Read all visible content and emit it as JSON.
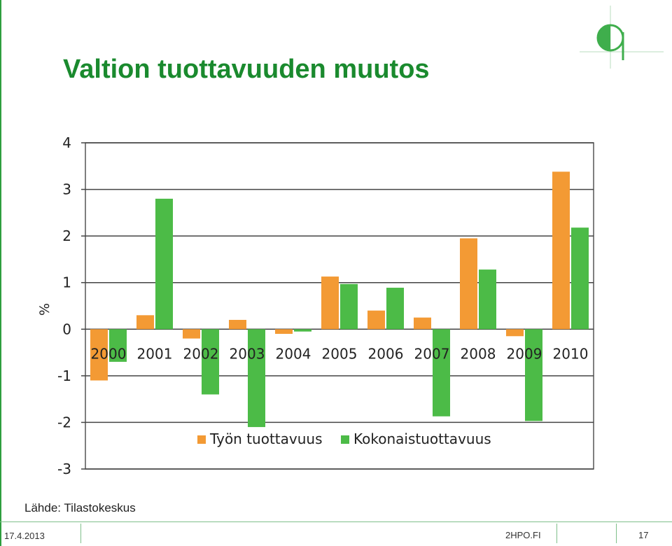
{
  "slide": {
    "title": "Valtion tuottavuuden muutos",
    "source": "Lähde: Tilastokeskus",
    "date": "17.4.2013",
    "site": "2HPO.FI",
    "page_number": "17"
  },
  "colors": {
    "title": "#1a8a2e",
    "series_1": "#f39a34",
    "series_2": "#4cbb47"
  },
  "chart_data": {
    "type": "bar",
    "title": "",
    "xlabel": "",
    "ylabel": "%",
    "ylim": [
      -3,
      4
    ],
    "yticks": [
      4,
      3,
      2,
      1,
      0,
      -1,
      -2,
      -3
    ],
    "grid": true,
    "legend_position": "bottom",
    "categories": [
      "2000",
      "2001",
      "2002",
      "2003",
      "2004",
      "2005",
      "2006",
      "2007",
      "2008",
      "2009",
      "2010"
    ],
    "series": [
      {
        "name": "Työn tuottavuus",
        "color": "#f39a34",
        "values": [
          -1.1,
          0.3,
          -0.2,
          0.2,
          -0.1,
          1.13,
          0.4,
          0.25,
          1.95,
          -0.15,
          3.38
        ]
      },
      {
        "name": "Kokonaistuottavuus",
        "color": "#4cbb47",
        "values": [
          -0.7,
          2.8,
          -1.4,
          -2.1,
          -0.05,
          0.97,
          0.89,
          -1.87,
          1.28,
          -1.97,
          2.18
        ]
      }
    ]
  }
}
